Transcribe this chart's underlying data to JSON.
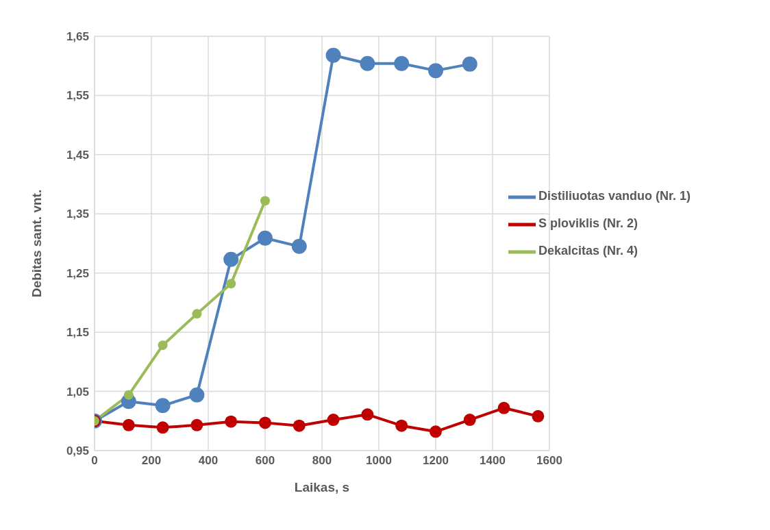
{
  "chart_data": {
    "type": "line",
    "xlabel": "Laikas, s",
    "ylabel": "Debitas sant. vnt.",
    "xlim": [
      0,
      1600
    ],
    "xticks": [
      0,
      200,
      400,
      600,
      800,
      1000,
      1200,
      1400,
      1600
    ],
    "ylim": [
      0.95,
      1.65
    ],
    "yticks": [
      {
        "value": 0.95,
        "label": "0,95"
      },
      {
        "value": 1.05,
        "label": "1,05"
      },
      {
        "value": 1.15,
        "label": "1,15"
      },
      {
        "value": 1.25,
        "label": "1,25"
      },
      {
        "value": 1.35,
        "label": "1,35"
      },
      {
        "value": 1.45,
        "label": "1,45"
      },
      {
        "value": 1.55,
        "label": "1,55"
      },
      {
        "value": 1.65,
        "label": "1,65"
      }
    ],
    "grid": true,
    "legend": "right",
    "marker": "circle",
    "line_style": "solid",
    "series": [
      {
        "name": "Distiliuotas vanduo (Nr. 1)",
        "color": "#4f81bd",
        "x": [
          0,
          120,
          240,
          360,
          480,
          600,
          720,
          840,
          960,
          1080,
          1200,
          1320
        ],
        "values": [
          1.0,
          1.033,
          1.026,
          1.044,
          1.273,
          1.309,
          1.295,
          1.618,
          1.604,
          1.604,
          1.592,
          1.603
        ]
      },
      {
        "name": "S ploviklis (Nr. 2)",
        "color": "#c00000",
        "x": [
          0,
          120,
          240,
          360,
          480,
          600,
          720,
          840,
          960,
          1080,
          1200,
          1320,
          1440,
          1560
        ],
        "values": [
          1.0,
          0.993,
          0.989,
          0.993,
          0.999,
          0.997,
          0.992,
          1.002,
          1.011,
          0.992,
          0.982,
          1.002,
          1.022,
          1.008
        ]
      },
      {
        "name": "Dekalcitas (Nr. 4)",
        "color": "#9bbb59",
        "x": [
          0,
          120,
          240,
          360,
          480,
          600
        ],
        "values": [
          1.0,
          1.044,
          1.128,
          1.181,
          1.232,
          1.372
        ]
      }
    ]
  }
}
